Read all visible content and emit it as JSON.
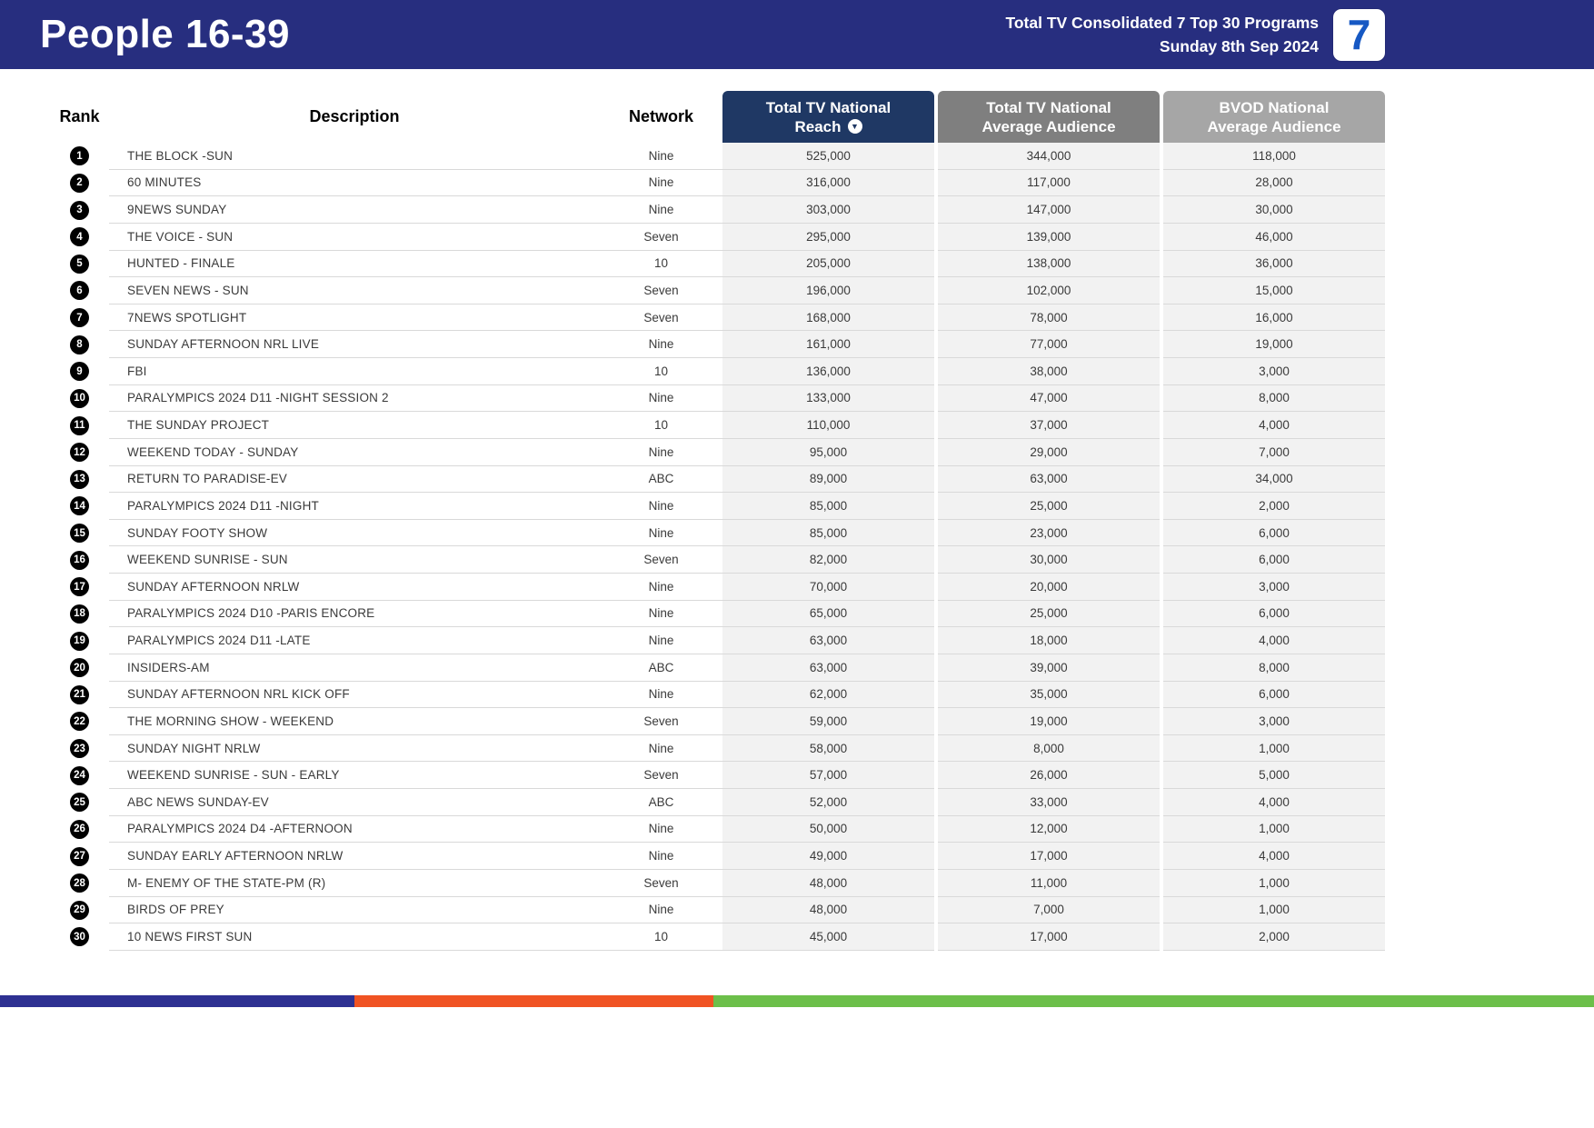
{
  "header": {
    "title": "People 16-39",
    "report_line1": "Total TV Consolidated 7 Top 30 Programs",
    "report_line2": "Sunday 8th Sep 2024",
    "logo_text": "7"
  },
  "icons": {
    "sort_descending": "▼"
  },
  "colors": {
    "header_bar": "#272e7f",
    "reach_header": "#1f3864",
    "avg_header": "#7f7f7f",
    "bvod_header": "#a6a6a6",
    "logo_blue": "#1658c3",
    "footer_navy": "#2e3192",
    "footer_orange": "#f05323",
    "footer_green": "#6cbf4a"
  },
  "table": {
    "columns": {
      "rank": "Rank",
      "description": "Description",
      "network": "Network",
      "reach_line1": "Total TV National",
      "reach_line2": "Reach",
      "avg_line1": "Total TV National",
      "avg_line2": "Average Audience",
      "bvod_line1": "BVOD National",
      "bvod_line2": "Average Audience"
    },
    "rows": [
      {
        "rank": "1",
        "description": "THE BLOCK -SUN",
        "network": "Nine",
        "reach": "525,000",
        "avg": "344,000",
        "bvod": "118,000"
      },
      {
        "rank": "2",
        "description": "60 MINUTES",
        "network": "Nine",
        "reach": "316,000",
        "avg": "117,000",
        "bvod": "28,000"
      },
      {
        "rank": "3",
        "description": "9NEWS SUNDAY",
        "network": "Nine",
        "reach": "303,000",
        "avg": "147,000",
        "bvod": "30,000"
      },
      {
        "rank": "4",
        "description": "THE VOICE - SUN",
        "network": "Seven",
        "reach": "295,000",
        "avg": "139,000",
        "bvod": "46,000"
      },
      {
        "rank": "5",
        "description": "HUNTED - FINALE",
        "network": "10",
        "reach": "205,000",
        "avg": "138,000",
        "bvod": "36,000"
      },
      {
        "rank": "6",
        "description": "SEVEN NEWS - SUN",
        "network": "Seven",
        "reach": "196,000",
        "avg": "102,000",
        "bvod": "15,000"
      },
      {
        "rank": "7",
        "description": "7NEWS SPOTLIGHT",
        "network": "Seven",
        "reach": "168,000",
        "avg": "78,000",
        "bvod": "16,000"
      },
      {
        "rank": "8",
        "description": "SUNDAY AFTERNOON NRL LIVE",
        "network": "Nine",
        "reach": "161,000",
        "avg": "77,000",
        "bvod": "19,000"
      },
      {
        "rank": "9",
        "description": "FBI",
        "network": "10",
        "reach": "136,000",
        "avg": "38,000",
        "bvod": "3,000"
      },
      {
        "rank": "10",
        "description": "PARALYMPICS 2024 D11 -NIGHT SESSION 2",
        "network": "Nine",
        "reach": "133,000",
        "avg": "47,000",
        "bvod": "8,000"
      },
      {
        "rank": "11",
        "description": "THE SUNDAY PROJECT",
        "network": "10",
        "reach": "110,000",
        "avg": "37,000",
        "bvod": "4,000"
      },
      {
        "rank": "12",
        "description": "WEEKEND TODAY - SUNDAY",
        "network": "Nine",
        "reach": "95,000",
        "avg": "29,000",
        "bvod": "7,000"
      },
      {
        "rank": "13",
        "description": "RETURN TO PARADISE-EV",
        "network": "ABC",
        "reach": "89,000",
        "avg": "63,000",
        "bvod": "34,000"
      },
      {
        "rank": "14",
        "description": "PARALYMPICS 2024 D11 -NIGHT",
        "network": "Nine",
        "reach": "85,000",
        "avg": "25,000",
        "bvod": "2,000"
      },
      {
        "rank": "15",
        "description": "SUNDAY FOOTY SHOW",
        "network": "Nine",
        "reach": "85,000",
        "avg": "23,000",
        "bvod": "6,000"
      },
      {
        "rank": "16",
        "description": "WEEKEND SUNRISE - SUN",
        "network": "Seven",
        "reach": "82,000",
        "avg": "30,000",
        "bvod": "6,000"
      },
      {
        "rank": "17",
        "description": "SUNDAY AFTERNOON NRLW",
        "network": "Nine",
        "reach": "70,000",
        "avg": "20,000",
        "bvod": "3,000"
      },
      {
        "rank": "18",
        "description": "PARALYMPICS 2024 D10 -PARIS ENCORE",
        "network": "Nine",
        "reach": "65,000",
        "avg": "25,000",
        "bvod": "6,000"
      },
      {
        "rank": "19",
        "description": "PARALYMPICS 2024 D11 -LATE",
        "network": "Nine",
        "reach": "63,000",
        "avg": "18,000",
        "bvod": "4,000"
      },
      {
        "rank": "20",
        "description": "INSIDERS-AM",
        "network": "ABC",
        "reach": "63,000",
        "avg": "39,000",
        "bvod": "8,000"
      },
      {
        "rank": "21",
        "description": "SUNDAY AFTERNOON NRL KICK OFF",
        "network": "Nine",
        "reach": "62,000",
        "avg": "35,000",
        "bvod": "6,000"
      },
      {
        "rank": "22",
        "description": "THE MORNING SHOW - WEEKEND",
        "network": "Seven",
        "reach": "59,000",
        "avg": "19,000",
        "bvod": "3,000"
      },
      {
        "rank": "23",
        "description": "SUNDAY NIGHT NRLW",
        "network": "Nine",
        "reach": "58,000",
        "avg": "8,000",
        "bvod": "1,000"
      },
      {
        "rank": "24",
        "description": "WEEKEND SUNRISE - SUN - EARLY",
        "network": "Seven",
        "reach": "57,000",
        "avg": "26,000",
        "bvod": "5,000"
      },
      {
        "rank": "25",
        "description": "ABC NEWS SUNDAY-EV",
        "network": "ABC",
        "reach": "52,000",
        "avg": "33,000",
        "bvod": "4,000"
      },
      {
        "rank": "26",
        "description": "PARALYMPICS 2024 D4 -AFTERNOON",
        "network": "Nine",
        "reach": "50,000",
        "avg": "12,000",
        "bvod": "1,000"
      },
      {
        "rank": "27",
        "description": "SUNDAY EARLY AFTERNOON NRLW",
        "network": "Nine",
        "reach": "49,000",
        "avg": "17,000",
        "bvod": "4,000"
      },
      {
        "rank": "28",
        "description": "M- ENEMY OF THE STATE-PM (R)",
        "network": "Seven",
        "reach": "48,000",
        "avg": "11,000",
        "bvod": "1,000"
      },
      {
        "rank": "29",
        "description": "BIRDS OF PREY",
        "network": "Nine",
        "reach": "48,000",
        "avg": "7,000",
        "bvod": "1,000"
      },
      {
        "rank": "30",
        "description": "10 NEWS FIRST SUN",
        "network": "10",
        "reach": "45,000",
        "avg": "17,000",
        "bvod": "2,000"
      }
    ]
  }
}
